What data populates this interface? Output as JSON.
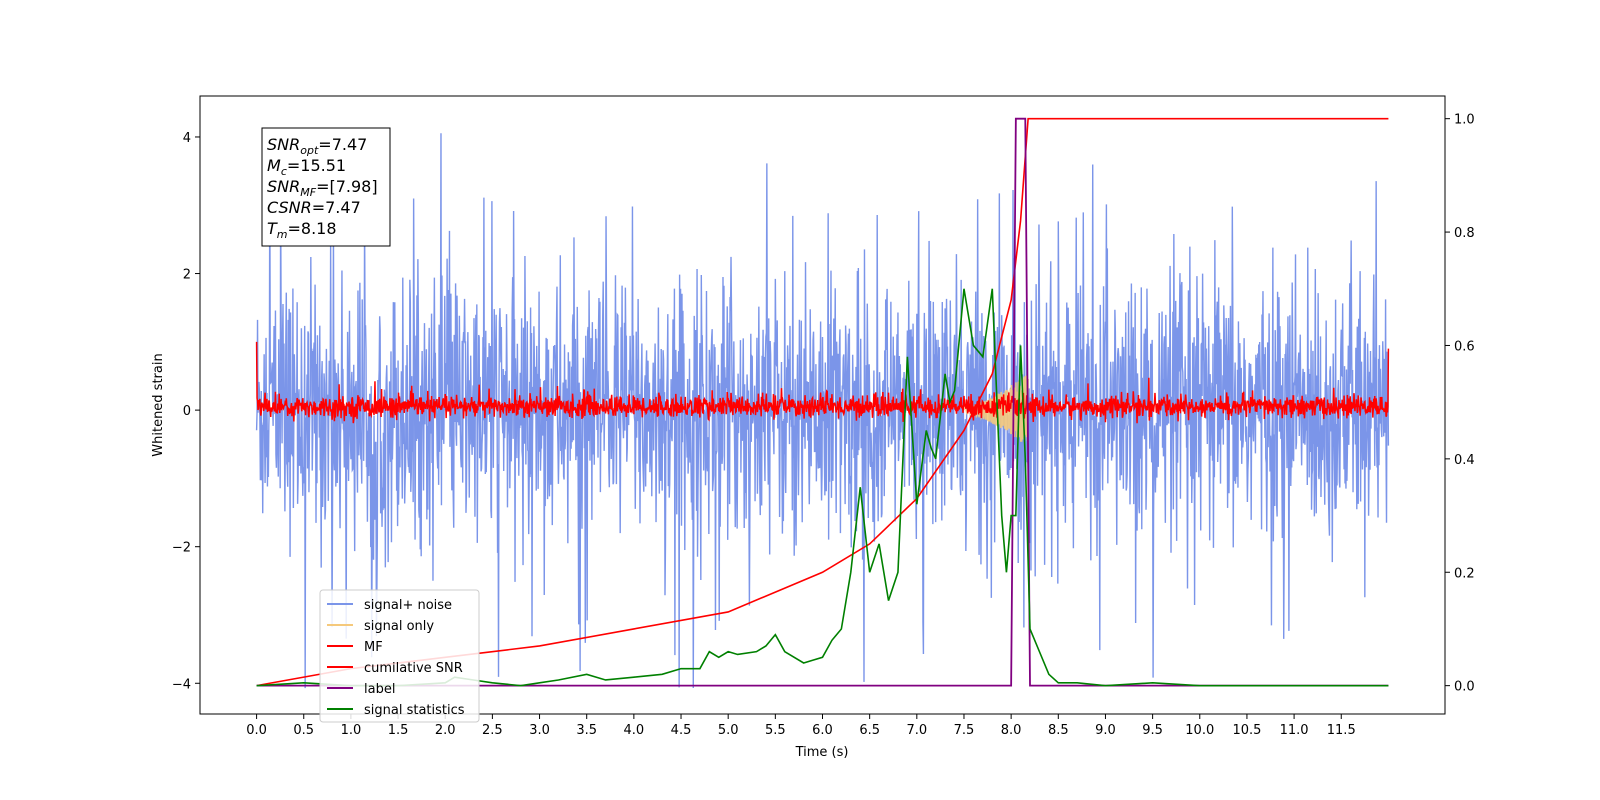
{
  "chart_data": {
    "type": "line",
    "title": "",
    "xlabel": "Time (s)",
    "ylabel_left": "Whitened strain",
    "ylabel_right": "",
    "xlim": [
      -0.6,
      12.6
    ],
    "ylim_left": [
      -4.45,
      4.6
    ],
    "ylim_right": [
      -0.05,
      1.04
    ],
    "x_ticks": [
      "0.0",
      "0.5",
      "1.0",
      "1.5",
      "2.0",
      "2.5",
      "3.0",
      "3.5",
      "4.0",
      "4.5",
      "5.0",
      "5.5",
      "6.0",
      "6.5",
      "7.0",
      "7.5",
      "8.0",
      "8.5",
      "9.0",
      "9.5",
      "10.0",
      "10.5",
      "11.0",
      "11.5"
    ],
    "y_ticks_left": [
      "4",
      "2",
      "0",
      "−2",
      "−4"
    ],
    "y_ticks_right": [
      "1.0",
      "0.8",
      "0.6",
      "0.4",
      "0.2",
      "0.0"
    ],
    "grid": false,
    "legend_position": "lower-left",
    "annotation": {
      "lines": [
        {
          "sym": "SNR",
          "sub": "opt",
          "val": "=7.47"
        },
        {
          "sym": "M",
          "sub": "c",
          "val": "=15.51"
        },
        {
          "sym": "SNR",
          "sub": "MF",
          "val": "=[7.98]"
        },
        {
          "sym": "CSNR",
          "sub": "",
          "val": "=7.47"
        },
        {
          "sym": "T",
          "sub": "m",
          "val": "=8.18"
        }
      ]
    },
    "series": [
      {
        "name": "signal+ noise",
        "axis": "left",
        "color": "#7b95e9",
        "description_values": "noise band approx between -2.3 and 2.3 with spikes to ±4.1 over 0–12 s"
      },
      {
        "name": "signal only",
        "axis": "left",
        "color": "#f5c97c",
        "x": [
          7.5,
          7.7,
          7.9,
          8.0,
          8.1,
          8.18
        ],
        "y": [
          0.05,
          0.2,
          0.4,
          0.5,
          0.55,
          0.0
        ]
      },
      {
        "name": "MF",
        "axis": "left",
        "color": "#ff0000",
        "description_values": "fluctuates between -0.15 and 0.3 around 0, with 1.0 at start and 0.9 at end"
      },
      {
        "name": "cumilative SNR",
        "axis": "right",
        "color": "#ff0000",
        "x": [
          0.0,
          1.0,
          2.0,
          3.0,
          4.0,
          5.0,
          6.0,
          6.5,
          7.0,
          7.5,
          7.8,
          8.0,
          8.1,
          8.18,
          12.0
        ],
        "y": [
          0.0,
          0.03,
          0.05,
          0.07,
          0.1,
          0.13,
          0.2,
          0.25,
          0.33,
          0.45,
          0.55,
          0.68,
          0.82,
          1.0,
          1.0
        ]
      },
      {
        "name": "label",
        "axis": "right",
        "color": "#800080",
        "x": [
          0.0,
          8.0,
          8.05,
          8.15,
          8.2,
          12.0
        ],
        "y": [
          0.0,
          0.0,
          1.0,
          1.0,
          0.0,
          0.0
        ]
      },
      {
        "name": "signal statistics",
        "axis": "right",
        "color": "#008000",
        "x": [
          0.0,
          0.5,
          1.0,
          1.5,
          2.0,
          2.1,
          2.3,
          2.5,
          2.8,
          3.0,
          3.2,
          3.5,
          3.7,
          4.0,
          4.3,
          4.5,
          4.7,
          4.8,
          4.9,
          5.0,
          5.1,
          5.3,
          5.4,
          5.5,
          5.6,
          5.8,
          5.9,
          6.0,
          6.1,
          6.2,
          6.3,
          6.4,
          6.5,
          6.6,
          6.7,
          6.8,
          6.9,
          7.0,
          7.1,
          7.15,
          7.2,
          7.3,
          7.35,
          7.4,
          7.5,
          7.6,
          7.7,
          7.8,
          7.9,
          7.95,
          8.0,
          8.05,
          8.1,
          8.15,
          8.2,
          8.3,
          8.4,
          8.5,
          8.7,
          9.0,
          9.5,
          10.0,
          11.0,
          12.0
        ],
        "y": [
          0.0,
          0.005,
          0.0,
          0.0,
          0.005,
          0.015,
          0.01,
          0.005,
          0.0,
          0.005,
          0.01,
          0.02,
          0.01,
          0.015,
          0.02,
          0.03,
          0.03,
          0.06,
          0.05,
          0.06,
          0.055,
          0.06,
          0.07,
          0.09,
          0.06,
          0.04,
          0.045,
          0.05,
          0.08,
          0.1,
          0.2,
          0.35,
          0.2,
          0.25,
          0.15,
          0.2,
          0.58,
          0.32,
          0.45,
          0.42,
          0.4,
          0.55,
          0.5,
          0.52,
          0.7,
          0.6,
          0.58,
          0.7,
          0.3,
          0.2,
          0.3,
          0.3,
          0.6,
          0.4,
          0.1,
          0.06,
          0.02,
          0.005,
          0.005,
          0.0,
          0.005,
          0.0,
          0.0,
          0.0
        ]
      }
    ]
  }
}
